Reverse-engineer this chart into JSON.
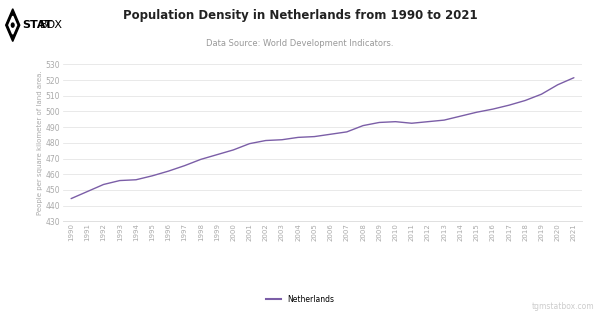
{
  "title": "Population Density in Netherlands from 1990 to 2021",
  "subtitle": "Data Source: World Development Indicators.",
  "ylabel": "People per square kilometer of land area.",
  "xlabel": "",
  "legend_label": "Netherlands",
  "line_color": "#7B5EA7",
  "background_color": "#ffffff",
  "plot_bg_color": "#ffffff",
  "years": [
    1990,
    1991,
    1992,
    1993,
    1994,
    1995,
    1996,
    1997,
    1998,
    1999,
    2000,
    2001,
    2002,
    2003,
    2004,
    2005,
    2006,
    2007,
    2008,
    2009,
    2010,
    2011,
    2012,
    2013,
    2014,
    2015,
    2016,
    2017,
    2018,
    2019,
    2020,
    2021
  ],
  "values": [
    444.5,
    449.0,
    453.5,
    456.0,
    456.5,
    459.0,
    462.0,
    465.5,
    469.5,
    472.5,
    475.5,
    479.5,
    481.5,
    482.0,
    483.5,
    484.0,
    485.5,
    487.0,
    491.0,
    493.0,
    493.5,
    492.5,
    493.5,
    494.5,
    497.0,
    499.5,
    501.5,
    504.0,
    507.0,
    511.0,
    517.0,
    521.5
  ],
  "ylim": [
    430,
    530
  ],
  "yticks": [
    430,
    440,
    450,
    460,
    470,
    480,
    490,
    500,
    510,
    520,
    530
  ],
  "watermark": "tgmstatbox.com",
  "grid_color": "#e0e0e0",
  "tick_color": "#aaaaaa",
  "title_color": "#222222",
  "subtitle_color": "#999999",
  "ylabel_color": "#aaaaaa",
  "watermark_color": "#cccccc",
  "line_width": 1.0
}
